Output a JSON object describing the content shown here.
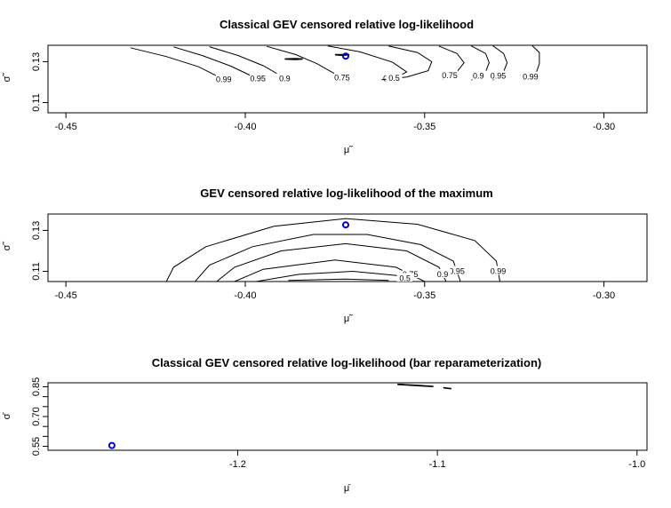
{
  "chart_data": [
    {
      "type": "contour",
      "title": "Classical GEV censored relative log-likelihood",
      "xlabel": "μ̃",
      "ylabel": "σ̃",
      "xlim": [
        -0.455,
        -0.288
      ],
      "ylim": [
        0.105,
        0.138
      ],
      "xticks": [
        -0.45,
        -0.4,
        -0.35,
        -0.3
      ],
      "xtick_labels": [
        "-0.45",
        "-0.40",
        "-0.35",
        "-0.30"
      ],
      "yticks": [
        0.11,
        0.13
      ],
      "ytick_labels": [
        "0.11",
        "0.13"
      ],
      "grid": false,
      "contour_levels": [
        "0.99",
        "0.95",
        "0.9",
        "0.75",
        "0.5",
        "0.5",
        "0.75",
        "0.9",
        "0.95",
        "0.99"
      ],
      "contours": [
        {
          "label": "0.99",
          "points": [
            [
              -0.432,
              0.1368
            ],
            [
              -0.422,
              0.1325
            ],
            [
              -0.413,
              0.1275
            ],
            [
              -0.407,
              0.1222
            ],
            [
              -0.405,
              0.1205
            ]
          ]
        },
        {
          "label": "0.95",
          "points": [
            [
              -0.42,
              0.1372
            ],
            [
              -0.412,
              0.133
            ],
            [
              -0.404,
              0.1278
            ],
            [
              -0.398,
              0.1228
            ],
            [
              -0.395,
              0.1205
            ]
          ]
        },
        {
          "label": "0.9",
          "points": [
            [
              -0.41,
              0.1373
            ],
            [
              -0.402,
              0.133
            ],
            [
              -0.395,
              0.128
            ],
            [
              -0.39,
              0.123
            ],
            [
              -0.388,
              0.1205
            ]
          ]
        },
        {
          "label": "0.75",
          "points": [
            [
              -0.394,
              0.1375
            ],
            [
              -0.386,
              0.1335
            ],
            [
              -0.38,
              0.129
            ],
            [
              -0.375,
              0.124
            ],
            [
              -0.371,
              0.1205
            ]
          ]
        },
        {
          "label": "0.5",
          "points": [
            [
              -0.377,
              0.1377
            ],
            [
              -0.368,
              0.1348
            ],
            [
              -0.359,
              0.1298
            ],
            [
              -0.355,
              0.125
            ],
            [
              -0.358,
              0.1222
            ],
            [
              -0.362,
              0.1212
            ]
          ]
        },
        {
          "label": "0.5",
          "points": [
            [
              -0.36,
              0.1376
            ],
            [
              -0.352,
              0.1345
            ],
            [
              -0.348,
              0.13
            ],
            [
              -0.349,
              0.1256
            ],
            [
              -0.355,
              0.1225
            ],
            [
              -0.362,
              0.1212
            ]
          ]
        },
        {
          "label": "0.75",
          "points": [
            [
              -0.346,
              0.1376
            ],
            [
              -0.341,
              0.134
            ],
            [
              -0.339,
              0.1295
            ],
            [
              -0.341,
              0.125
            ],
            [
              -0.345,
              0.1215
            ]
          ]
        },
        {
          "label": "0.9",
          "points": [
            [
              -0.337,
              0.1377
            ],
            [
              -0.333,
              0.134
            ],
            [
              -0.332,
              0.1295
            ],
            [
              -0.333,
              0.125
            ],
            [
              -0.337,
              0.121
            ]
          ]
        },
        {
          "label": "0.95",
          "points": [
            [
              -0.331,
              0.1378
            ],
            [
              -0.328,
              0.134
            ],
            [
              -0.327,
              0.1295
            ],
            [
              -0.328,
              0.125
            ],
            [
              -0.331,
              0.121
            ]
          ]
        },
        {
          "label": "0.99",
          "points": [
            [
              -0.32,
              0.1378
            ],
            [
              -0.318,
              0.1345
            ],
            [
              -0.318,
              0.129
            ],
            [
              -0.319,
              0.124
            ],
            [
              -0.322,
              0.121
            ]
          ]
        }
      ],
      "small_contours": [
        {
          "points": [
            [
              -0.389,
              0.1313
            ],
            [
              -0.386,
              0.1315
            ],
            [
              -0.384,
              0.1313
            ],
            [
              -0.386,
              0.1311
            ],
            [
              -0.389,
              0.1313
            ]
          ]
        },
        {
          "points": [
            [
              -0.375,
              0.1334
            ],
            [
              -0.371,
              0.1334
            ],
            [
              -0.373,
              0.1331
            ],
            [
              -0.375,
              0.1334
            ]
          ]
        }
      ],
      "markers": [
        {
          "x": -0.372,
          "y": 0.1327,
          "color": "#0000cc"
        }
      ]
    },
    {
      "type": "contour",
      "title": "GEV censored relative log-likelihood of the maximum",
      "xlabel": "μ̃",
      "ylabel": "σ̃",
      "xlim": [
        -0.455,
        -0.288
      ],
      "ylim": [
        0.105,
        0.138
      ],
      "xticks": [
        -0.45,
        -0.4,
        -0.35,
        -0.3
      ],
      "xtick_labels": [
        "-0.45",
        "-0.40",
        "-0.35",
        "-0.30"
      ],
      "yticks": [
        0.11,
        0.13
      ],
      "ytick_labels": [
        "0.11",
        "0.13"
      ],
      "grid": false,
      "contour_levels": [
        "0.99",
        "0.99",
        "0.95",
        "0.9",
        "0.75",
        "0.5"
      ],
      "contours": [
        {
          "label": "0.99",
          "points": [
            [
              -0.422,
              0.105
            ],
            [
              -0.42,
              0.112
            ],
            [
              -0.411,
              0.122
            ],
            [
              -0.392,
              0.132
            ],
            [
              -0.372,
              0.1358
            ],
            [
              -0.352,
              0.133
            ],
            [
              -0.336,
              0.125
            ],
            [
              -0.33,
              0.115
            ],
            [
              -0.329,
              0.105
            ]
          ]
        },
        {
          "label": "0.95",
          "points": [
            [
              -0.414,
              0.105
            ],
            [
              -0.41,
              0.113
            ],
            [
              -0.398,
              0.122
            ],
            [
              -0.381,
              0.128
            ],
            [
              -0.366,
              0.128
            ],
            [
              -0.351,
              0.123
            ],
            [
              -0.342,
              0.115
            ],
            [
              -0.34,
              0.105
            ]
          ]
        },
        {
          "label": "0.9",
          "points": [
            [
              -0.408,
              0.105
            ],
            [
              -0.403,
              0.112
            ],
            [
              -0.39,
              0.12
            ],
            [
              -0.372,
              0.1235
            ],
            [
              -0.355,
              0.12
            ],
            [
              -0.346,
              0.112
            ],
            [
              -0.344,
              0.105
            ]
          ]
        },
        {
          "label": "0.75",
          "points": [
            [
              -0.403,
              0.105
            ],
            [
              -0.395,
              0.111
            ],
            [
              -0.375,
              0.1155
            ],
            [
              -0.358,
              0.112
            ],
            [
              -0.35,
              0.105
            ]
          ]
        },
        {
          "label": "0.5",
          "points": [
            [
              -0.397,
              0.105
            ],
            [
              -0.385,
              0.1085
            ],
            [
              -0.37,
              0.11
            ],
            [
              -0.358,
              0.108
            ],
            [
              -0.353,
              0.105
            ]
          ]
        },
        {
          "label": "",
          "points": [
            [
              -0.388,
              0.1055
            ],
            [
              -0.372,
              0.1062
            ],
            [
              -0.36,
              0.1055
            ]
          ]
        }
      ],
      "small_contours": [],
      "markers": [
        {
          "x": -0.372,
          "y": 0.1327,
          "color": "#0000cc"
        }
      ]
    },
    {
      "type": "contour",
      "title": "Classical GEV censored relative log-likelihood (bar reparameterization)",
      "xlabel": "μ̄",
      "ylabel": "σ̄",
      "xlim": [
        -1.295,
        -0.995
      ],
      "ylim": [
        0.53,
        0.87
      ],
      "xticks": [
        -1.2,
        -1.1,
        -1.0
      ],
      "xtick_labels": [
        "-1.2",
        "-1.1",
        "-1.0"
      ],
      "yticks": [
        0.55,
        0.6,
        0.65,
        0.7,
        0.75,
        0.8,
        0.85
      ],
      "ytick_labels": [
        "0.55",
        "0.70",
        "0.85"
      ],
      "grid": false,
      "contour_levels": [],
      "contours": [],
      "small_contours": [
        {
          "points": [
            [
              -1.12,
              0.862
            ],
            [
              -1.11,
              0.857
            ],
            [
              -1.102,
              0.851
            ],
            [
              -1.108,
              0.855
            ],
            [
              -1.12,
              0.862
            ]
          ]
        },
        {
          "points": [
            [
              -1.097,
              0.845
            ],
            [
              -1.093,
              0.84
            ]
          ]
        }
      ],
      "markers": [
        {
          "x": -1.263,
          "y": 0.554,
          "color": "#0000cc"
        }
      ]
    }
  ]
}
